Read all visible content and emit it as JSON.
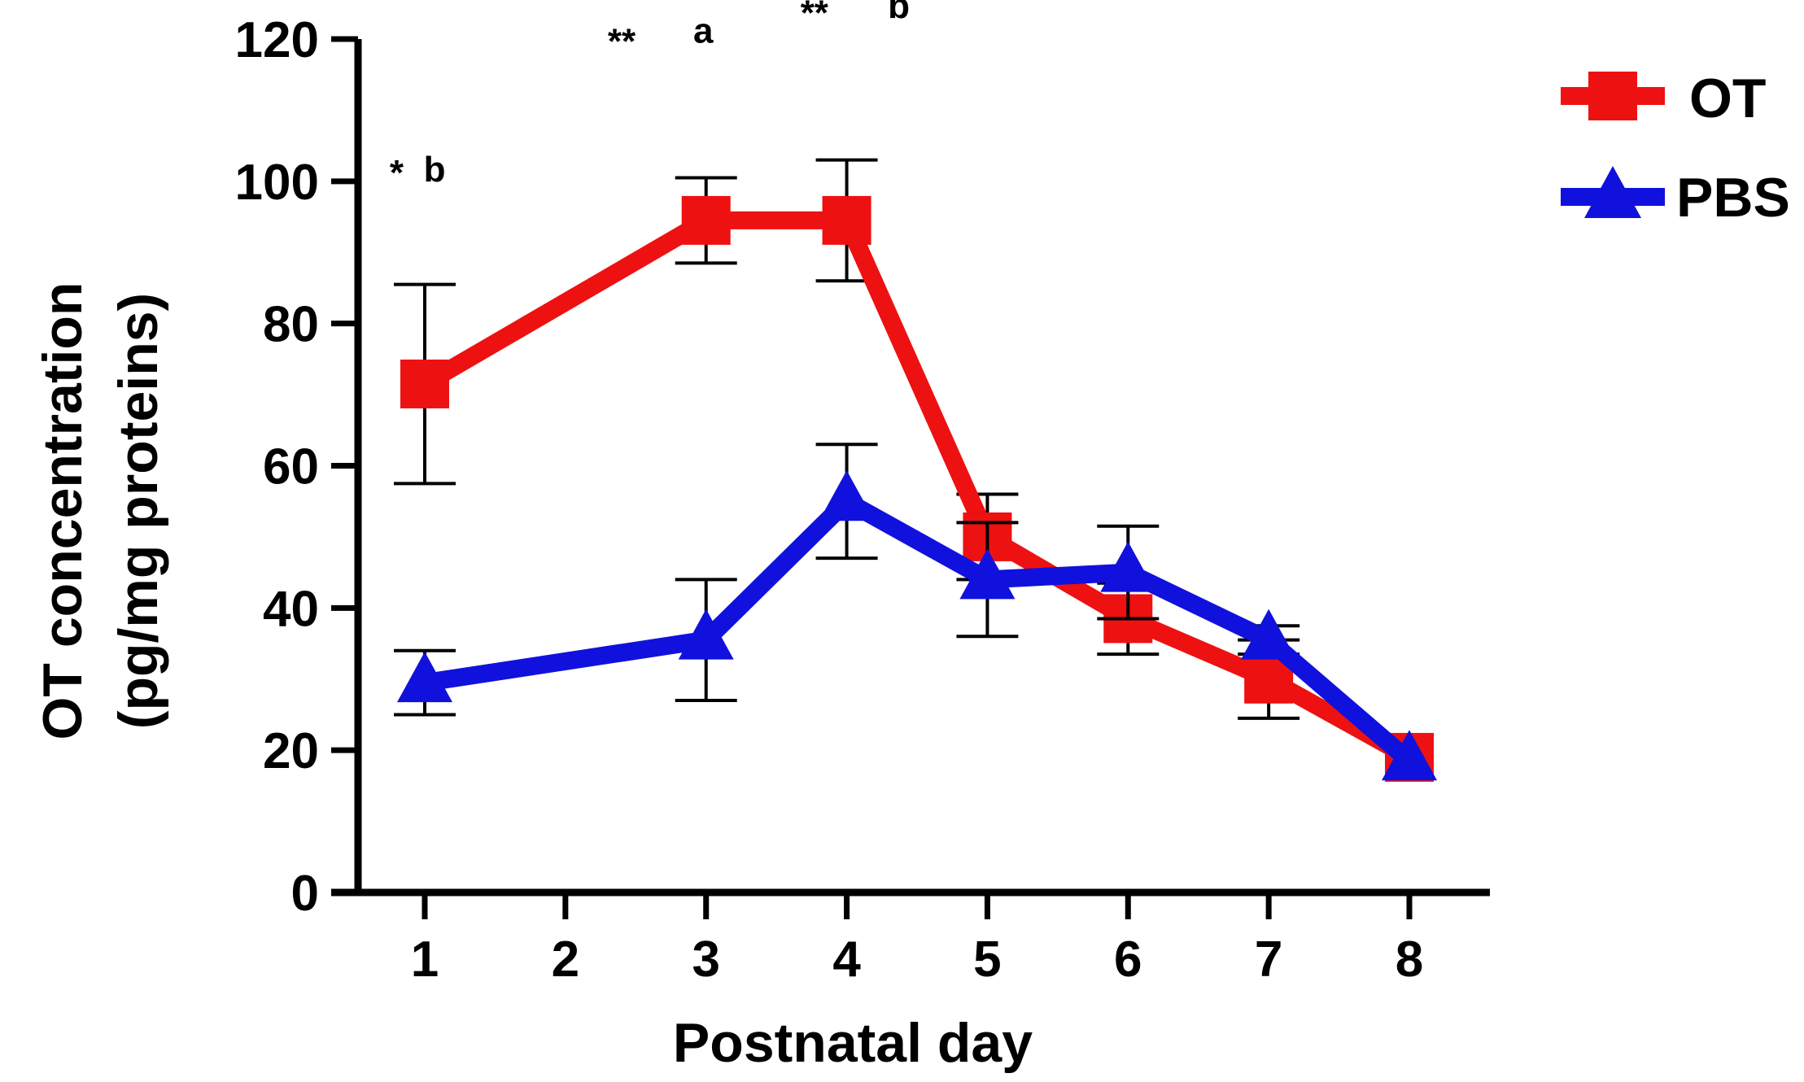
{
  "chart_data": {
    "type": "line",
    "title": "",
    "xlabel": "Postnatal day",
    "ylabel_lines": [
      "OT concentration",
      "(pg/mg proteins)"
    ],
    "x": [
      1,
      2,
      3,
      4,
      5,
      6,
      7,
      8
    ],
    "x_tick_labels": [
      "1",
      "2",
      "3",
      "4",
      "5",
      "6",
      "7",
      "8"
    ],
    "y_tick_labels": [
      "0",
      "20",
      "40",
      "60",
      "80",
      "100",
      "120"
    ],
    "ylim": [
      0,
      120
    ],
    "xlim": [
      0.5,
      8.6
    ],
    "legend_position": "top-right",
    "series": [
      {
        "name": "OT",
        "color": "#ee1111",
        "marker": "square",
        "x": [
          1,
          3,
          4,
          5,
          6,
          7,
          8
        ],
        "values": [
          71.5,
          94.5,
          94.5,
          50,
          38.5,
          30,
          19
        ],
        "error": [
          14,
          6,
          8.5,
          6,
          5,
          5.5,
          0
        ]
      },
      {
        "name": "PBS",
        "color": "#1111dd",
        "marker": "triangle",
        "x": [
          1,
          3,
          4,
          5,
          6,
          7,
          8
        ],
        "values": [
          29.5,
          35.5,
          55,
          44,
          45,
          35.5,
          18.5
        ],
        "error": [
          4.5,
          8.5,
          8,
          8,
          6.5,
          2,
          0
        ]
      }
    ],
    "annotations": [
      {
        "text": "*",
        "x": 0.8,
        "y": 99.5
      },
      {
        "text": "b",
        "x": 1.07,
        "y": 100
      },
      {
        "text": "**",
        "x": 2.4,
        "y": 118
      },
      {
        "text": "a",
        "x": 2.98,
        "y": 119.5
      },
      {
        "text": "**",
        "x": 3.77,
        "y": 122
      },
      {
        "text": "b",
        "x": 4.37,
        "y": 123
      }
    ]
  }
}
